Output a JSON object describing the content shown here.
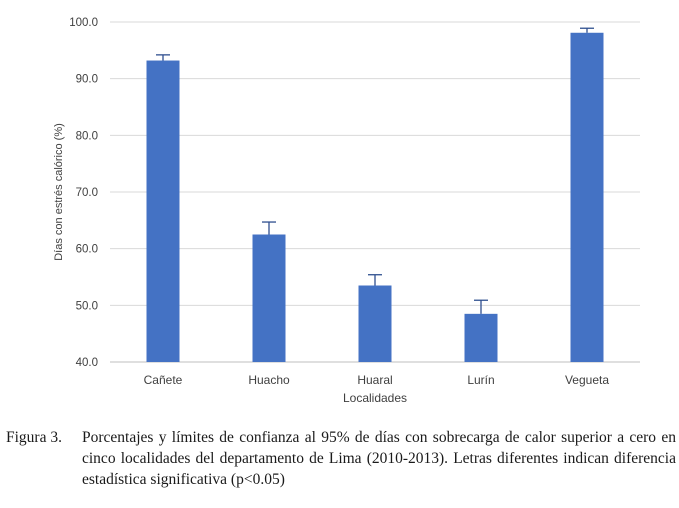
{
  "chart_data": {
    "type": "bar",
    "categories": [
      "Cañete",
      "Huacho",
      "Huaral",
      "Lurín",
      "Vegueta"
    ],
    "values": [
      93.2,
      62.5,
      53.5,
      48.5,
      98.1
    ],
    "error_upper": [
      94.2,
      64.7,
      55.4,
      50.9,
      98.9
    ],
    "xlabel": "Localidades",
    "ylabel": "Días con estrés calórico (%)",
    "ylim": [
      40,
      100
    ],
    "yticks": [
      "40.0",
      "50.0",
      "60.0",
      "70.0",
      "80.0",
      "90.0",
      "100.0"
    ],
    "grid": true,
    "bar_color": "#4472c4",
    "grid_color": "#d9d9d9"
  },
  "caption": {
    "label": "Figura 3.",
    "text": "Porcentajes y límites de confianza al 95% de días con sobrecarga de calor superior a cero en cinco localidades del departamento de Lima (2010-2013). Letras diferentes indican diferencia estadística significativa (p<0.05)"
  }
}
